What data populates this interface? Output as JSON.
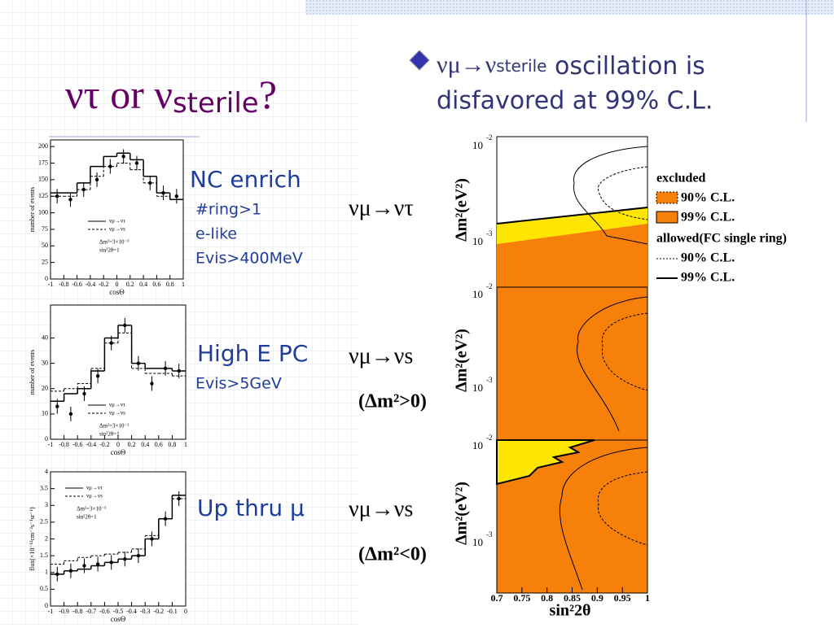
{
  "slide": {
    "title": [
      "ντ or ν",
      "sterile",
      "?"
    ],
    "bullet": [
      "νμ→ν",
      "sterile",
      " oscillation is",
      "disfavored at 99% C.L."
    ],
    "rows": [
      {
        "label": "NC enrich",
        "cuts": [
          "#ring>1",
          "e-like",
          "Evis>400MeV"
        ],
        "channel": [
          "νμ→ντ"
        ]
      },
      {
        "label": "High E PC",
        "cuts": [
          "Evis>5GeV"
        ],
        "channel": [
          "νμ→νs",
          "(Δm²>0)"
        ]
      },
      {
        "label": "Up thru μ",
        "cuts": [],
        "channel": [
          "νμ→νs",
          "(Δm²<0)"
        ]
      }
    ]
  },
  "exclusion_plot": {
    "xlabel": "sin²2θ",
    "ylabel": "Δm²(eV²)",
    "ytick_base": "10",
    "ytick_exps": [
      "-2",
      "-3"
    ],
    "xticks": [
      0.7,
      0.75,
      0.8,
      0.85,
      0.9,
      0.95,
      1
    ],
    "legend": [
      "excluded",
      "90% C.L.",
      "99% C.L.",
      "allowed(FC single ring)",
      "90% C.L.",
      "99% C.L."
    ]
  },
  "chart_data": [
    {
      "type": "histogram",
      "xlabel": "cosΘ",
      "ylabel": "number of events",
      "bins": [
        -1,
        -0.8,
        -0.6,
        -0.4,
        -0.2,
        0,
        0.2,
        0.4,
        0.6,
        0.8,
        1
      ],
      "values": [
        125,
        120,
        135,
        150,
        170,
        185,
        175,
        145,
        130,
        125
      ],
      "series": [
        {
          "name": "νμ→ντ",
          "color": "#000000",
          "values": [
            130,
            130,
            145,
            170,
            185,
            190,
            180,
            155,
            130,
            120
          ]
        },
        {
          "name": "νμ→νs",
          "color": "#000000",
          "values": [
            125,
            125,
            135,
            155,
            170,
            175,
            165,
            145,
            125,
            120
          ]
        }
      ],
      "annotations": [
        "Δm²=3×10⁻³",
        "sin²2θ=1"
      ],
      "xlim": [
        -1,
        1
      ],
      "ylim": [
        0,
        210
      ],
      "yticks": [
        0,
        25,
        50,
        75,
        100,
        125,
        150,
        175,
        200
      ],
      "xticks": [
        -1,
        -0.8,
        -0.6,
        -0.4,
        -0.2,
        0,
        0.2,
        0.4,
        0.6,
        0.8,
        1
      ]
    },
    {
      "type": "histogram",
      "xlabel": "cosΘ",
      "ylabel": "number of events",
      "bins": [
        -1,
        -0.8,
        -0.6,
        -0.4,
        -0.2,
        0,
        0.2,
        0.4,
        0.6,
        0.8,
        1
      ],
      "values": [
        13,
        10,
        18,
        25,
        38,
        45,
        30,
        22,
        28,
        27
      ],
      "series": [
        {
          "name": "νμ→ντ",
          "color": "#000000",
          "values": [
            15,
            18,
            20,
            27,
            40,
            45,
            30,
            28,
            28,
            27
          ]
        },
        {
          "name": "νμ→νs",
          "color": "#000000",
          "values": [
            19,
            20,
            22,
            28,
            38,
            42,
            28,
            26,
            26,
            25
          ]
        }
      ],
      "annotations": [
        "Δm²=3×10⁻³",
        "sin²2θ=1"
      ],
      "xlim": [
        -1,
        1
      ],
      "ylim": [
        0,
        53
      ],
      "yticks": [
        0,
        10,
        20,
        30,
        40
      ],
      "xticks": [
        -1,
        -0.8,
        -0.6,
        -0.4,
        -0.2,
        0,
        0.2,
        0.4,
        0.6,
        0.8,
        1
      ]
    },
    {
      "type": "histogram",
      "xlabel": "cosΘ",
      "ylabel": "flux(×10⁻¹³cm⁻²s⁻¹sr⁻¹)",
      "bins": [
        -1,
        -0.9,
        -0.8,
        -0.7,
        -0.6,
        -0.5,
        -0.4,
        -0.3,
        -0.2,
        -0.1,
        0
      ],
      "values": [
        0.95,
        1.05,
        1.2,
        1.25,
        1.3,
        1.4,
        1.5,
        2.0,
        2.6,
        3.2
      ],
      "series": [
        {
          "name": "νμ→ντ",
          "color": "#000000",
          "values": [
            0.95,
            1.05,
            1.1,
            1.2,
            1.3,
            1.4,
            1.5,
            2.0,
            2.6,
            3.3
          ]
        },
        {
          "name": "νμ→νs",
          "color": "#000000",
          "values": [
            1.25,
            1.35,
            1.45,
            1.5,
            1.55,
            1.6,
            1.7,
            2.1,
            2.6,
            3.2
          ]
        }
      ],
      "annotations": [
        "Δm²=3×10⁻³",
        "sin²2θ=1"
      ],
      "xlim": [
        -1,
        0
      ],
      "ylim": [
        0,
        4
      ],
      "yticks": [
        0,
        0.5,
        1,
        1.5,
        2,
        2.5,
        3,
        3.5,
        4
      ],
      "xticks": [
        -1,
        -0.9,
        -0.8,
        -0.7,
        -0.6,
        -0.5,
        -0.4,
        -0.3,
        -0.2,
        -0.1,
        0
      ]
    }
  ]
}
